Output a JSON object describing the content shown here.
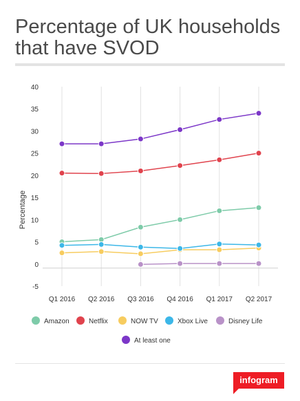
{
  "title": "Percentage of UK households that have SVOD",
  "brand": "infogram",
  "chart_data": {
    "type": "line",
    "title": "Percentage of UK households that have SVOD",
    "xlabel": "",
    "ylabel": "Percentage",
    "ylim": [
      -5,
      40
    ],
    "yticks": [
      -5,
      0,
      5,
      10,
      15,
      20,
      25,
      30,
      35,
      40
    ],
    "categories": [
      "Q1 2016",
      "Q2 2016",
      "Q3 2016",
      "Q4 2016",
      "Q1 2017",
      "Q2 2017"
    ],
    "grid": "vertical",
    "legend_position": "bottom",
    "series": [
      {
        "name": "Amazon",
        "color": "#7ecba9",
        "values": [
          5.0,
          5.5,
          8.3,
          10.0,
          12.0,
          12.7
        ]
      },
      {
        "name": "Netflix",
        "color": "#e0434d",
        "values": [
          20.5,
          20.4,
          21.0,
          22.2,
          23.5,
          25.0
        ]
      },
      {
        "name": "NOW TV",
        "color": "#f7cc5f",
        "values": [
          2.5,
          2.8,
          2.3,
          3.2,
          3.2,
          3.6
        ]
      },
      {
        "name": "Xbox Live",
        "color": "#3cb7e8",
        "values": [
          4.2,
          4.4,
          3.8,
          3.5,
          4.5,
          4.3
        ]
      },
      {
        "name": "Disney Life",
        "color": "#b992c8",
        "values": [
          null,
          null,
          -0.1,
          0.1,
          0.1,
          0.1
        ]
      },
      {
        "name": "At least one",
        "color": "#7c37c8",
        "values": [
          27.1,
          27.1,
          28.2,
          30.3,
          32.6,
          34.0
        ]
      }
    ]
  }
}
